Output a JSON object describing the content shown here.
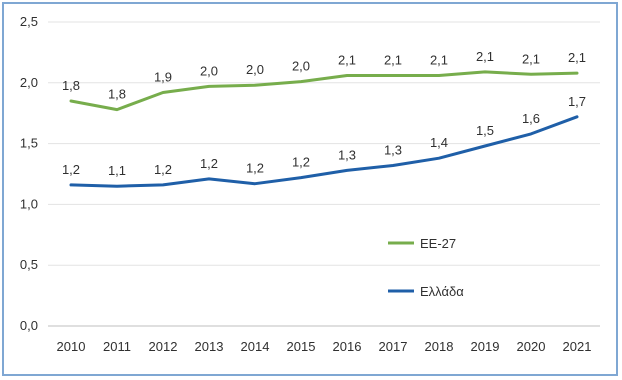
{
  "chart_data": {
    "type": "line",
    "x": [
      "2010",
      "2011",
      "2012",
      "2013",
      "2014",
      "2015",
      "2016",
      "2017",
      "2018",
      "2019",
      "2020",
      "2021"
    ],
    "series": [
      {
        "name": "ΕΕ-27",
        "color": "#77ad4c",
        "values": [
          1.85,
          1.78,
          1.92,
          1.97,
          1.98,
          2.01,
          2.06,
          2.06,
          2.06,
          2.09,
          2.07,
          2.08
        ],
        "labels": [
          "1,8",
          "1,8",
          "1,9",
          "2,0",
          "2,0",
          "2,0",
          "2,1",
          "2,1",
          "2,1",
          "2,1",
          "2,1",
          "2,1"
        ]
      },
      {
        "name": "Ελλάδα",
        "color": "#1f5fa8",
        "values": [
          1.16,
          1.15,
          1.16,
          1.21,
          1.17,
          1.22,
          1.28,
          1.32,
          1.38,
          1.48,
          1.58,
          1.72
        ],
        "labels": [
          "1,2",
          "1,1",
          "1,2",
          "1,2",
          "1,2",
          "1,2",
          "1,3",
          "1,3",
          "1,4",
          "1,5",
          "1,6",
          "1,7"
        ]
      }
    ],
    "yticks": [
      "0,0",
      "0,5",
      "1,0",
      "1,5",
      "2,0",
      "2,5"
    ],
    "ylim": [
      0,
      2.5
    ],
    "grid": true,
    "legend": "right"
  }
}
